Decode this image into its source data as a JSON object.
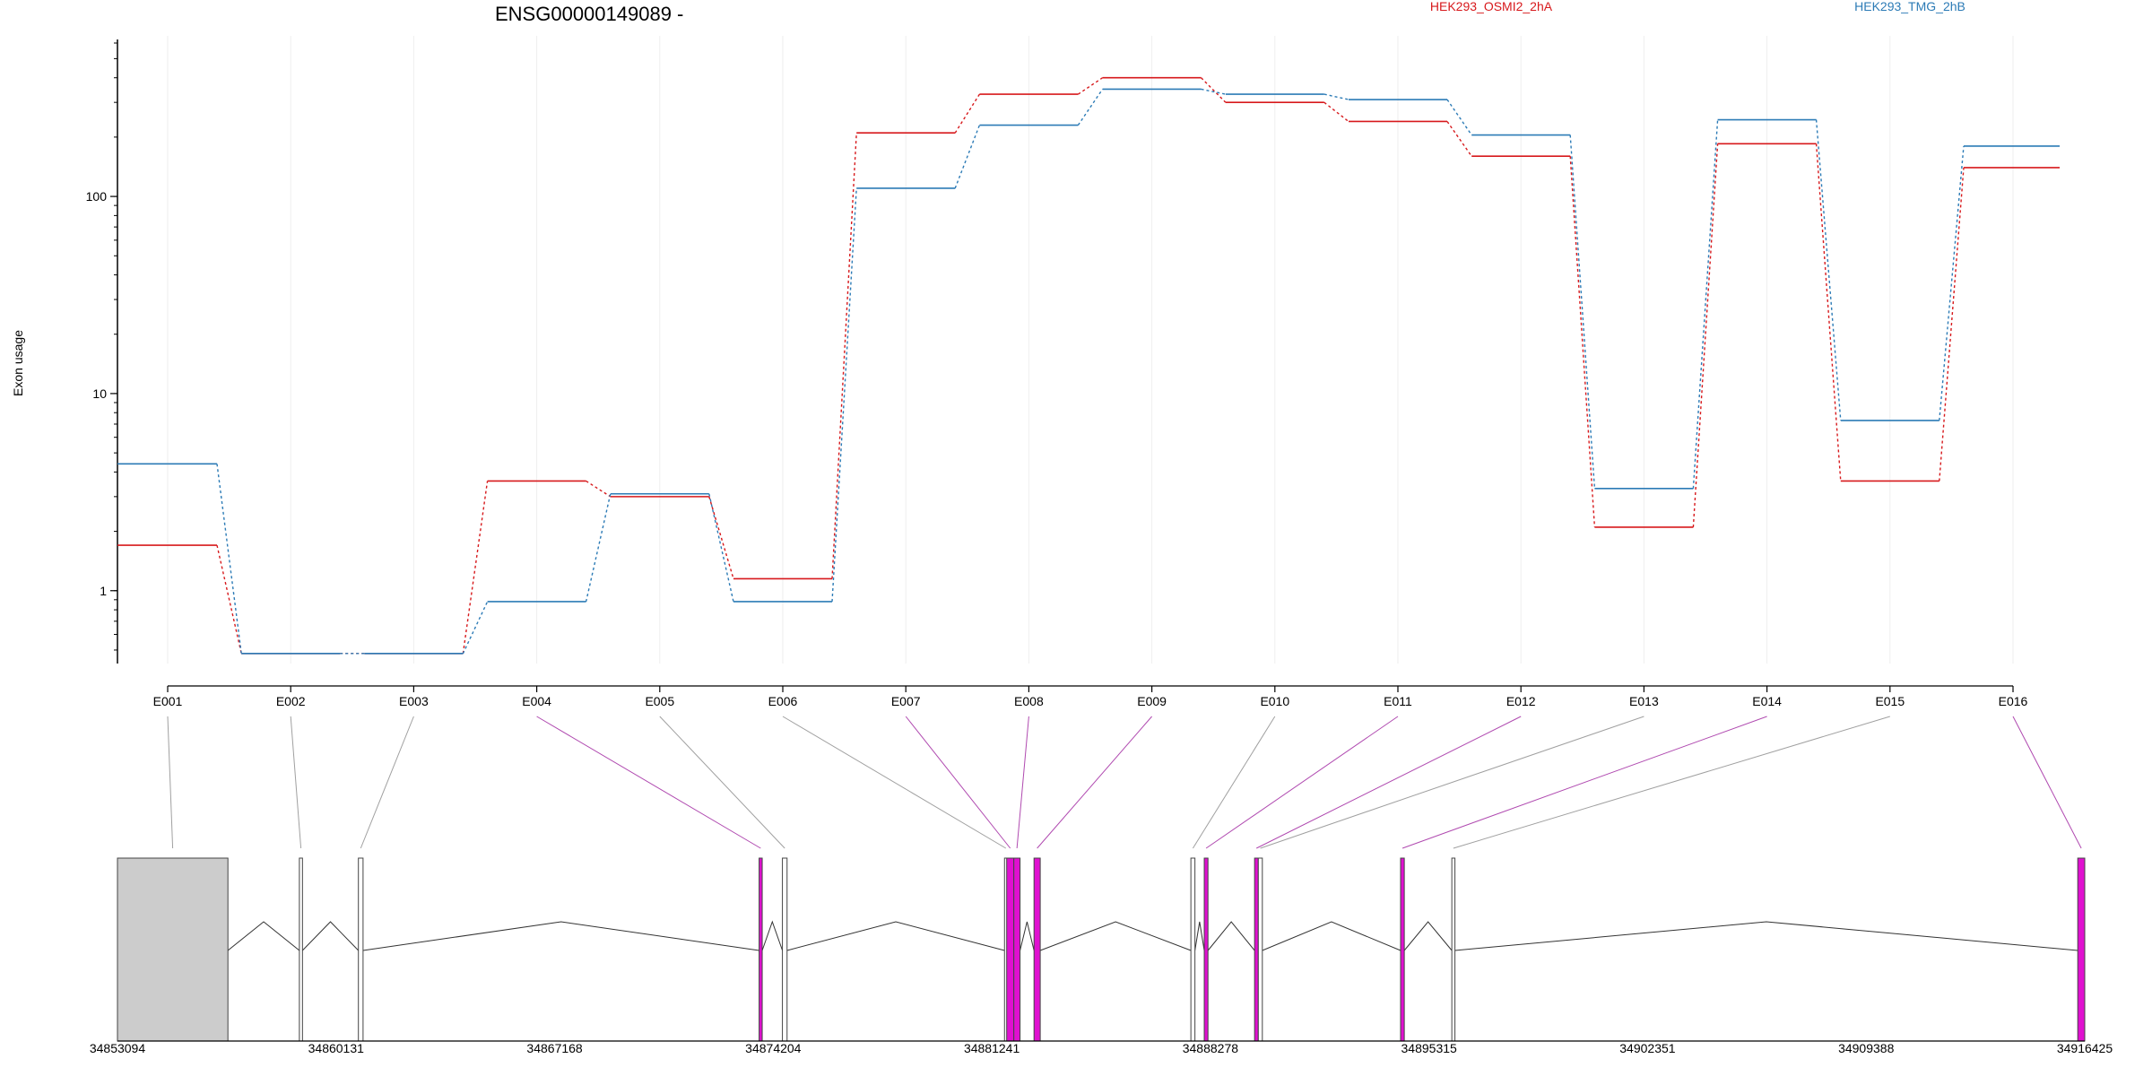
{
  "chart_data": {
    "type": "line",
    "title": "ENSG00000149089 -",
    "ylabel": "Exon usage",
    "xlabel": "",
    "y_scale": "log",
    "ylim": [
      0.45,
      600
    ],
    "y_ticks": [
      1,
      10,
      100
    ],
    "grid": "vertical, light",
    "legend_placement": "top",
    "colors": {
      "series_1": "#d7191c",
      "series_2": "#2c7bb6",
      "highlight_exon": "#e010d0",
      "outline": "#555555"
    },
    "categories": [
      "E001",
      "E002",
      "E003",
      "E004",
      "E005",
      "E006",
      "E007",
      "E008",
      "E009",
      "E010",
      "E011",
      "E012",
      "E013",
      "E014",
      "E015",
      "E016"
    ],
    "series": [
      {
        "name": "HEK293_OSMI2_2hA",
        "color": "#d7191c",
        "values": [
          1.7,
          0.48,
          0.48,
          3.6,
          3.0,
          1.15,
          210,
          330,
          400,
          300,
          240,
          160,
          2.1,
          185,
          3.6,
          140
        ]
      },
      {
        "name": "HEK293_TMG_2hB",
        "color": "#2c7bb6",
        "values": [
          4.4,
          0.48,
          0.48,
          0.88,
          3.1,
          0.88,
          110,
          230,
          350,
          330,
          310,
          205,
          3.3,
          245,
          7.3,
          180
        ]
      }
    ],
    "gene_model": {
      "coordinate_ticks": [
        "34853094",
        "34860131",
        "34867168",
        "34874204",
        "34881241",
        "34888278",
        "34895315",
        "34902351",
        "34909388",
        "34916425"
      ],
      "coord_start": 34853094,
      "coord_end": 34916425,
      "exons": [
        {
          "id": "E001",
          "start": 34853094,
          "end": 34856650,
          "highlight": false,
          "color": "#cccccc"
        },
        {
          "id": "E002",
          "start": 34858950,
          "end": 34859050,
          "highlight": false,
          "color": "#ffffff"
        },
        {
          "id": "E003",
          "start": 34860850,
          "end": 34861000,
          "highlight": false,
          "color": "#ffffff"
        },
        {
          "id": "E004",
          "start": 34873750,
          "end": 34873850,
          "highlight": true,
          "color": "#e010d0"
        },
        {
          "id": "E005",
          "start": 34874500,
          "end": 34874650,
          "highlight": false,
          "color": "#ffffff"
        },
        {
          "id": "E006",
          "start": 34881650,
          "end": 34881720,
          "highlight": false,
          "color": "#ffffff"
        },
        {
          "id": "E007",
          "start": 34881720,
          "end": 34881950,
          "highlight": true,
          "color": "#e010d0"
        },
        {
          "id": "E008",
          "start": 34881950,
          "end": 34882150,
          "highlight": true,
          "color": "#e010d0"
        },
        {
          "id": "E009",
          "start": 34882600,
          "end": 34882800,
          "highlight": true,
          "color": "#e010d0"
        },
        {
          "id": "E010",
          "start": 34887650,
          "end": 34887780,
          "highlight": false,
          "color": "#ffffff"
        },
        {
          "id": "E011",
          "start": 34888080,
          "end": 34888200,
          "highlight": true,
          "color": "#e010d0"
        },
        {
          "id": "E012",
          "start": 34889700,
          "end": 34889820,
          "highlight": true,
          "color": "#e010d0"
        },
        {
          "id": "E013",
          "start": 34889820,
          "end": 34889950,
          "highlight": false,
          "color": "#ffffff"
        },
        {
          "id": "E014",
          "start": 34894400,
          "end": 34894520,
          "highlight": true,
          "color": "#e010d0"
        },
        {
          "id": "E015",
          "start": 34896050,
          "end": 34896150,
          "highlight": false,
          "color": "#ffffff"
        },
        {
          "id": "E016",
          "start": 34916200,
          "end": 34916425,
          "highlight": true,
          "color": "#e010d0"
        }
      ]
    }
  }
}
